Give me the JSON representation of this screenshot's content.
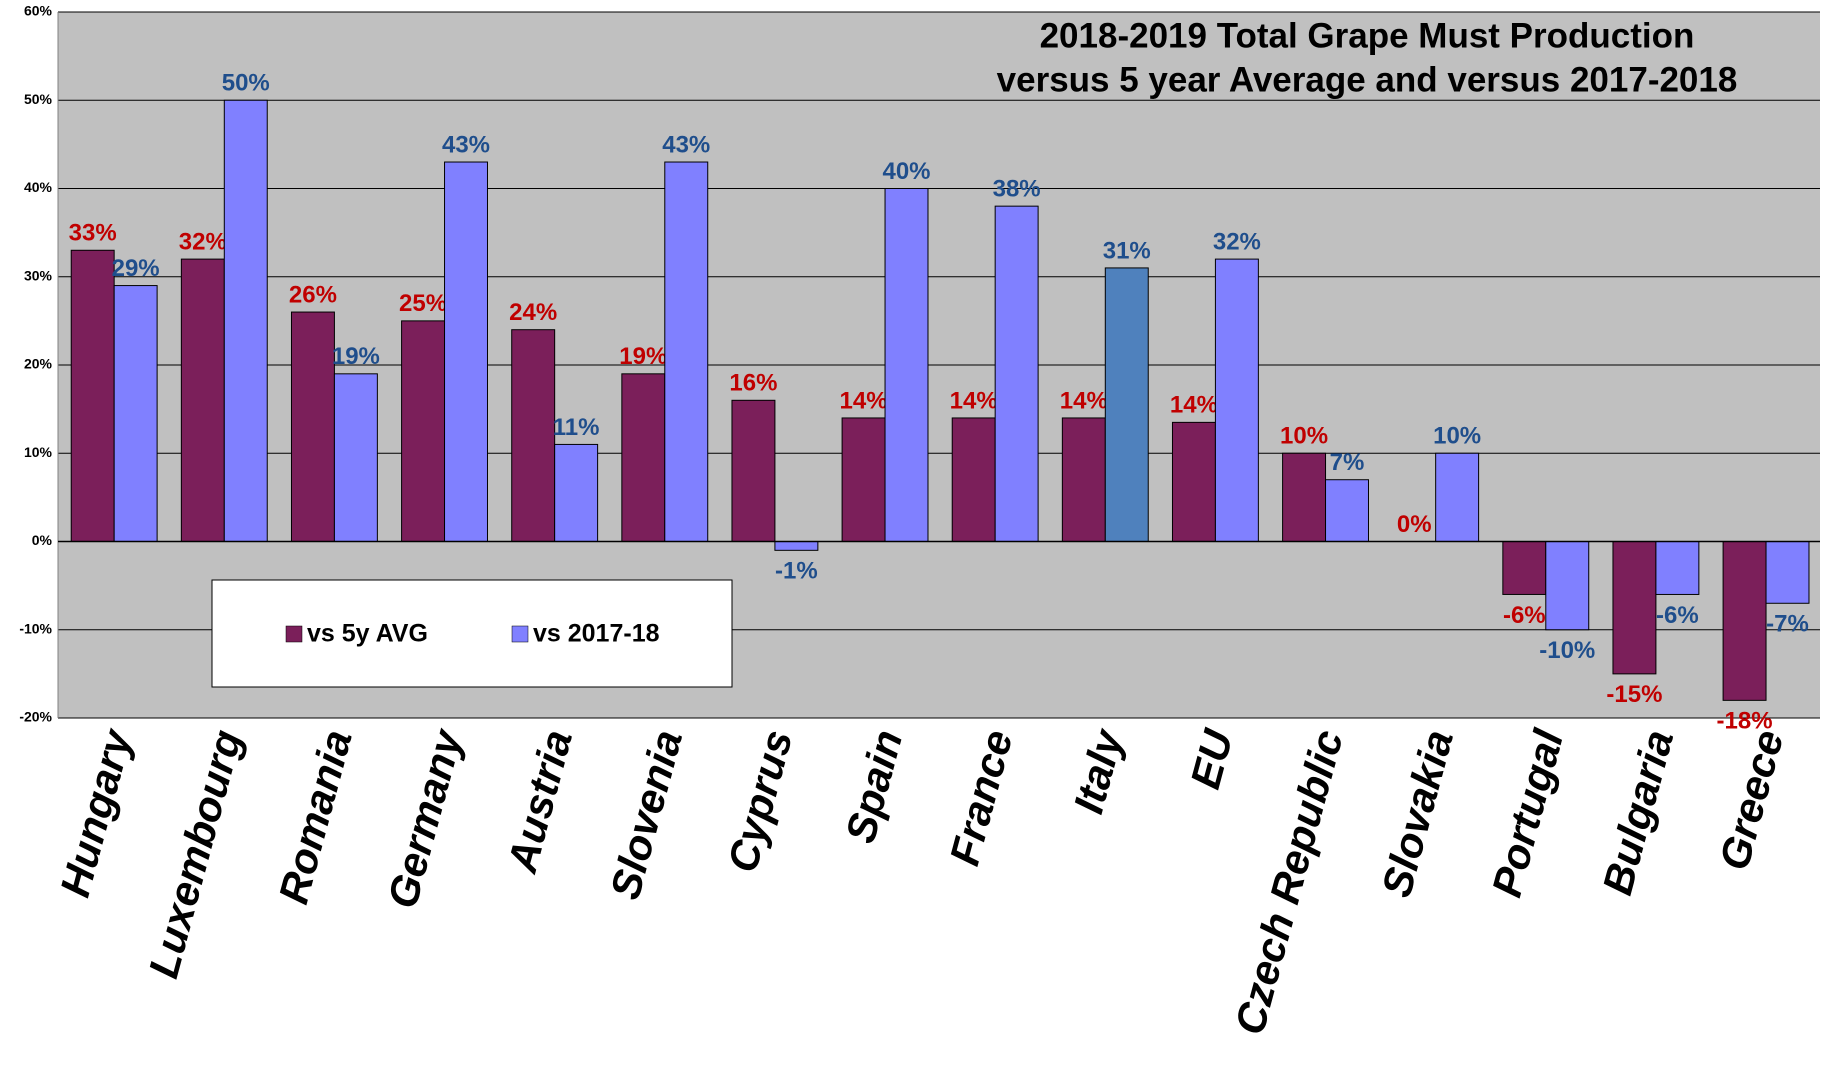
{
  "chart_data": {
    "type": "bar",
    "title": [
      "2018-2019 Total Grape Must Production",
      "versus  5 year Average and versus 2017-2018"
    ],
    "categories": [
      "Hungary",
      "Luxembourg",
      "Romania",
      "Germany",
      "Austria",
      "Slovenia",
      "Cyprus",
      "Spain",
      "France",
      "Italy",
      "EU",
      "Czech Republic",
      "Slovakia",
      "Portugal",
      "Bulgaria",
      "Greece"
    ],
    "series": [
      {
        "name": "vs 5y AVG",
        "color": "#7b1f5a",
        "label_color": "#c00000",
        "values": [
          33,
          32,
          26,
          25,
          24,
          19,
          16,
          14,
          14,
          14,
          13.5,
          10,
          0,
          -6,
          -15,
          -18
        ],
        "value_labels": [
          "33%",
          "32%",
          "26%",
          "25%",
          "24%",
          "19%",
          "16%",
          "14%",
          "14%",
          "14%",
          "14%",
          "10%",
          "0%",
          "-6%",
          "-15%",
          "-18%"
        ]
      },
      {
        "name": "vs 2017-18",
        "color": "#8080ff",
        "label_color": "#1f4e8c",
        "colors": [
          "#8080ff",
          "#8080ff",
          "#8080ff",
          "#8080ff",
          "#8080ff",
          "#8080ff",
          "#8080ff",
          "#8080ff",
          "#8080ff",
          "#4f81bd",
          "#8080ff",
          "#8080ff",
          "#8080ff",
          "#8080ff",
          "#8080ff",
          "#8080ff"
        ],
        "values": [
          29,
          50,
          19,
          43,
          11,
          43,
          -1,
          40,
          38,
          31,
          32,
          7,
          10,
          -10,
          -6,
          -7
        ],
        "value_labels": [
          "29%",
          "50%",
          "19%",
          "43%",
          "11%",
          "43%",
          "-1%",
          "40%",
          "38%",
          "31%",
          "32%",
          "7%",
          "10%",
          "-10%",
          "-6%",
          "-7%"
        ]
      }
    ],
    "ylim": [
      -20,
      60
    ],
    "yticks": [
      {
        "value": -20,
        "label": "-20%"
      },
      {
        "value": -10,
        "label": "-10%"
      },
      {
        "value": 0,
        "label": "0%"
      },
      {
        "value": 10,
        "label": "10%"
      },
      {
        "value": 20,
        "label": "20%"
      },
      {
        "value": 30,
        "label": "30%"
      },
      {
        "value": 40,
        "label": "40%"
      },
      {
        "value": 50,
        "label": "50%"
      },
      {
        "value": 60,
        "label": "60%"
      }
    ],
    "grid": true,
    "legend": "inside-lower-left"
  }
}
